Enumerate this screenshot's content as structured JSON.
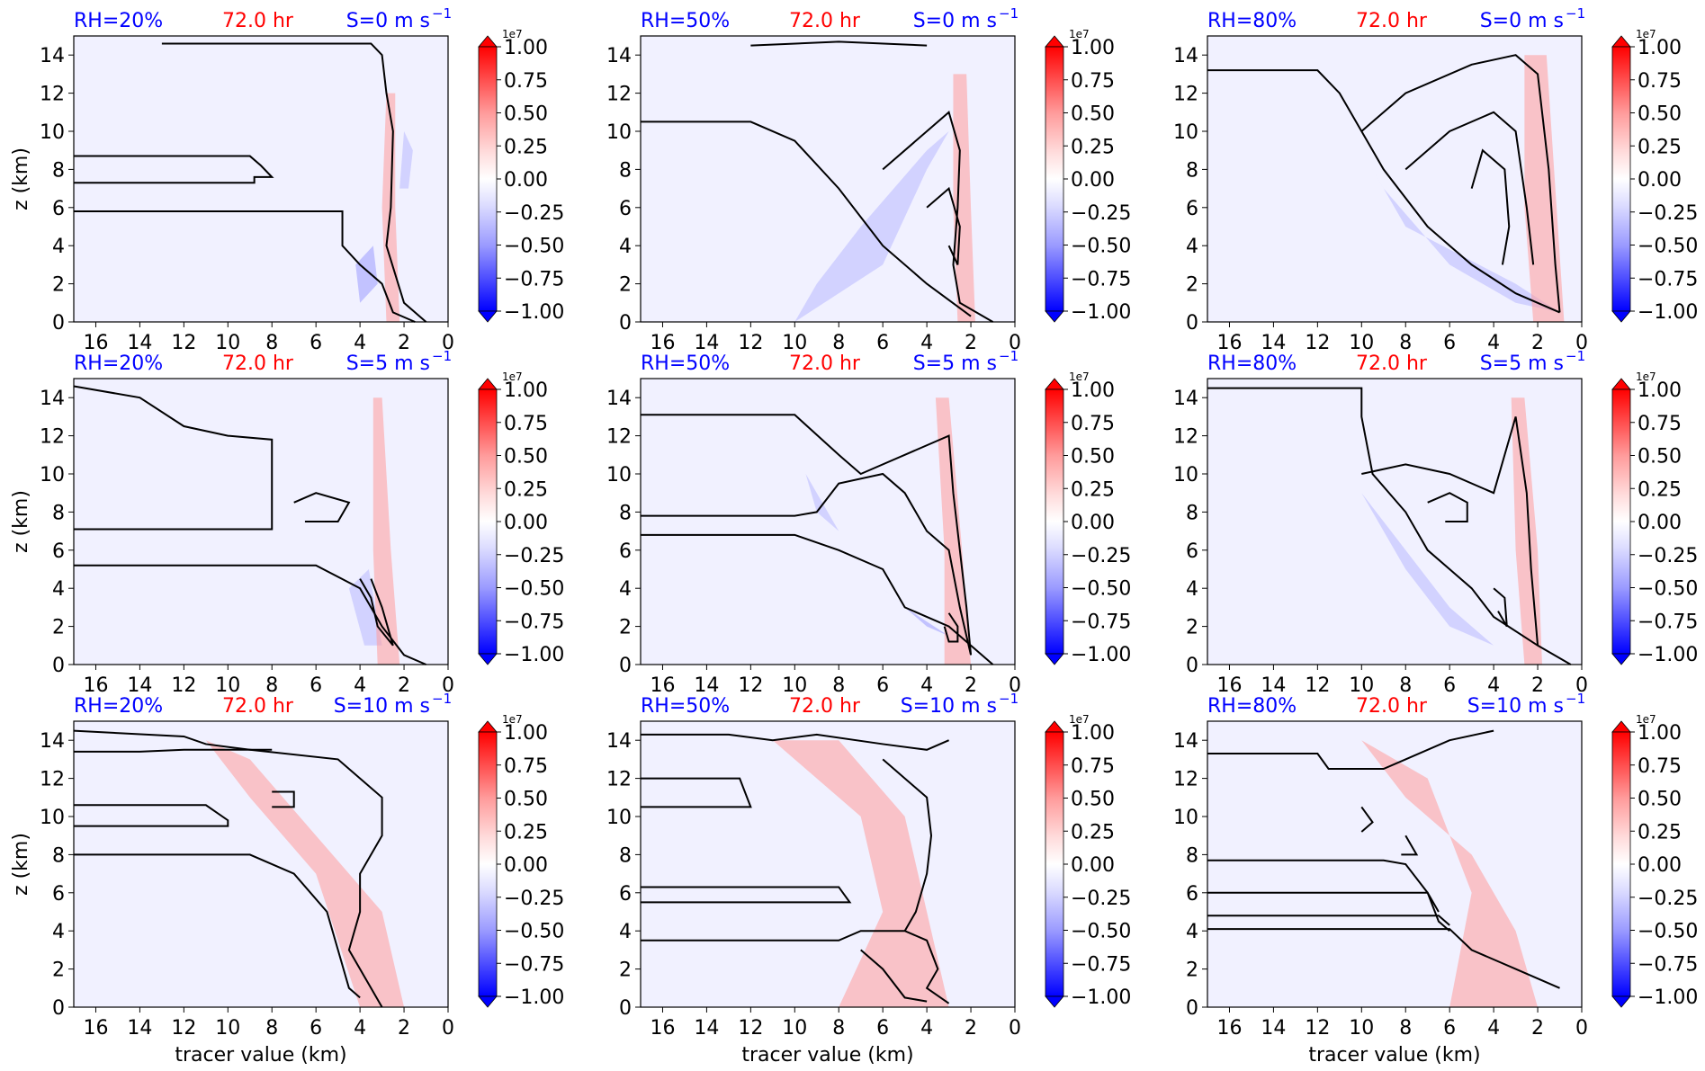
{
  "colors": {
    "rh": "#0000ff",
    "time": "#ff0000",
    "shear": "#0000ff",
    "contour": "#000000",
    "cmap_neg": "#0000ff",
    "cmap_pos": "#ff0000",
    "background": "#f1f1ff"
  },
  "colorbar": {
    "ticks": [
      "1.00",
      "0.75",
      "0.50",
      "0.25",
      "0.00",
      "−0.25",
      "−0.50",
      "−0.75",
      "−1.00"
    ],
    "tick_values": [
      1.0,
      0.75,
      0.5,
      0.25,
      0.0,
      -0.25,
      -0.5,
      -0.75,
      -1.0
    ],
    "multiplier": "1e7",
    "extend": "both"
  },
  "axes": {
    "xlabel": "tracer value (km)",
    "ylabel": "z (km)",
    "xticks": [
      "16",
      "14",
      "12",
      "10",
      "8",
      "6",
      "4",
      "2",
      "0"
    ],
    "yticks": [
      "0",
      "2",
      "4",
      "6",
      "8",
      "10",
      "12",
      "14"
    ]
  },
  "chart_data": [
    {
      "type": "heatmap",
      "rh": "RH=20%",
      "time": "72.0 hr",
      "shear": "S=0 m s",
      "shear_exp": "−1",
      "xlim": [
        17,
        0
      ],
      "ylim": [
        0,
        15
      ]
    },
    {
      "type": "heatmap",
      "rh": "RH=50%",
      "time": "72.0 hr",
      "shear": "S=0 m s",
      "shear_exp": "−1",
      "xlim": [
        17,
        0
      ],
      "ylim": [
        0,
        15
      ]
    },
    {
      "type": "heatmap",
      "rh": "RH=80%",
      "time": "72.0 hr",
      "shear": "S=0 m s",
      "shear_exp": "−1",
      "xlim": [
        17,
        0
      ],
      "ylim": [
        0,
        15
      ]
    },
    {
      "type": "heatmap",
      "rh": "RH=20%",
      "time": "72.0 hr",
      "shear": "S=5 m s",
      "shear_exp": "−1",
      "xlim": [
        17,
        0
      ],
      "ylim": [
        0,
        15
      ]
    },
    {
      "type": "heatmap",
      "rh": "RH=50%",
      "time": "72.0 hr",
      "shear": "S=5 m s",
      "shear_exp": "−1",
      "xlim": [
        17,
        0
      ],
      "ylim": [
        0,
        15
      ]
    },
    {
      "type": "heatmap",
      "rh": "RH=80%",
      "time": "72.0 hr",
      "shear": "S=5 m s",
      "shear_exp": "−1",
      "xlim": [
        17,
        0
      ],
      "ylim": [
        0,
        15
      ]
    },
    {
      "type": "heatmap",
      "rh": "RH=20%",
      "time": "72.0 hr",
      "shear": "S=10 m s",
      "shear_exp": "−1",
      "xlim": [
        17,
        0
      ],
      "ylim": [
        0,
        15
      ]
    },
    {
      "type": "heatmap",
      "rh": "RH=50%",
      "time": "72.0 hr",
      "shear": "S=10 m s",
      "shear_exp": "−1",
      "xlim": [
        17,
        0
      ],
      "ylim": [
        0,
        15
      ]
    },
    {
      "type": "heatmap",
      "rh": "RH=80%",
      "time": "72.0 hr",
      "shear": "S=10 m s",
      "shear_exp": "−1",
      "xlim": [
        17,
        0
      ],
      "ylim": [
        0,
        15
      ]
    }
  ]
}
